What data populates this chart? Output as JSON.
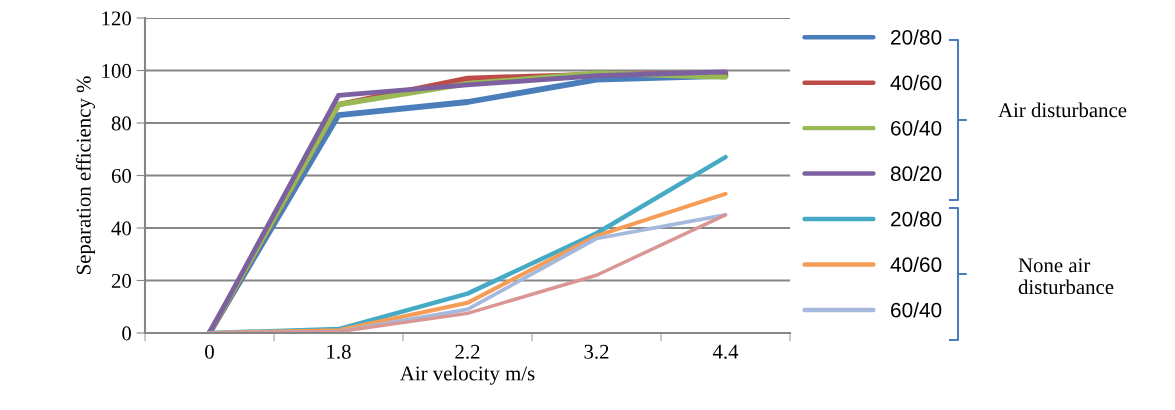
{
  "chart_data": {
    "type": "line",
    "xlabel": "Air velocity m/s",
    "ylabel": "Separation efficiency %",
    "categories": [
      "0",
      "1.8",
      "2.2",
      "3.2",
      "4.4"
    ],
    "series": [
      {
        "name": "20/80",
        "color": "#4a7ebb",
        "values": [
          0,
          83,
          88,
          96.5,
          98
        ]
      },
      {
        "name": "40/60",
        "color": "#be4b48",
        "values": [
          0,
          87,
          97,
          98.5,
          99
        ]
      },
      {
        "name": "60/40",
        "color": "#98b954",
        "values": [
          0,
          87,
          95,
          99,
          97.5
        ]
      },
      {
        "name": "80/20",
        "color": "#7d60a0",
        "values": [
          0,
          90.5,
          94.5,
          98,
          99.5
        ]
      },
      {
        "name": "20/80",
        "color": "#46aac5",
        "values": [
          0,
          1.5,
          15,
          38,
          67
        ]
      },
      {
        "name": "40/60",
        "color": "#f59d56",
        "values": [
          0,
          1,
          11.5,
          37,
          53
        ]
      },
      {
        "name": "60/40",
        "color": "#a5b9dc",
        "values": [
          0,
          0.5,
          9,
          36,
          45
        ]
      },
      {
        "color": "#d99694",
        "values": [
          0,
          0.5,
          7.5,
          22,
          45
        ]
      }
    ],
    "ylim": [
      0,
      120
    ],
    "yticks": [
      0,
      20,
      40,
      60,
      80,
      100,
      120
    ],
    "grid": "y",
    "legend": "right",
    "marker": "none",
    "line_style": "solid",
    "annotations": [
      "Air disturbance",
      "None air disturbance"
    ]
  }
}
